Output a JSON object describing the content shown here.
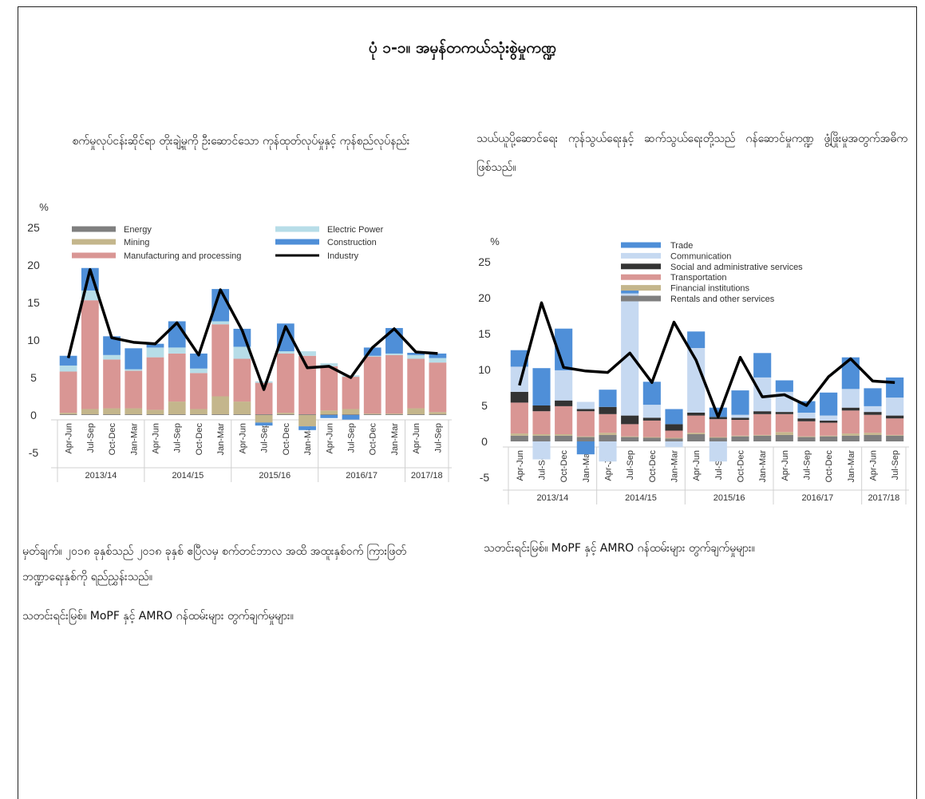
{
  "title": "ပုံ ၁-၁။ အမှန်တကယ်သုံးစွဲမှုကဏ္ဍ",
  "left": {
    "caption": "စက်မှုလုပ်ငန်းဆိုင်ရာ တိုးချဲ့မှုကို ဦးဆောင်သော ကုန်ထုတ်လုပ်မှုနှင့် ကုန်စည်လုပ်နည်း",
    "note": "မှတ်ချက်။ ၂၀၁၈ ခုနှစ်သည် ၂၀၁၈ ခုနှစ် ဧပြီလမှ စက်တင်ဘာလ အထိ အထူးနှစ်ဝက် ကြားဖြတ်ဘဏ္ဍာရေးနှစ်ကို ရည်ညွှန်းသည်။",
    "source": "သတင်းရင်းမြစ်။ MoPF နှင့် AMRO ဂန်ထမ်းများ တွက်ချက်မှုများ။",
    "chart": {
      "type": "bar",
      "stacked": true,
      "unit": "%",
      "years": [
        "2013/14",
        "2014/15",
        "2015/16",
        "2016/17",
        "2017/18"
      ],
      "categories": [
        [
          "Apr-Jun",
          "Jul-Sep",
          "Oct-Dec",
          "Jan-Mar"
        ],
        [
          "Apr-Jun",
          "Jul-Sep",
          "Oct-Dec",
          "Jan-Mar"
        ],
        [
          "Apr-Jun",
          "Jul-Sep",
          "Oct-Dec",
          "Jan-Mar"
        ],
        [
          "Apr-Jun",
          "Jul-Sep",
          "Oct-Dec",
          "Jan-Mar"
        ],
        [
          "Apr-Jun",
          "Jul-Sep"
        ]
      ],
      "ylim": [
        -5,
        25
      ],
      "yticks": [
        -5,
        0,
        5,
        10,
        15,
        20,
        25
      ],
      "series": [
        {
          "name": "Energy",
          "color": "#7f7f7f",
          "values": [
            0.1,
            0.1,
            0.1,
            0.1,
            0.1,
            0.1,
            0.1,
            0.1,
            0.1,
            0.1,
            0.1,
            0.1,
            0.1,
            0.1,
            0.1,
            0.1,
            0.1,
            0.1
          ]
        },
        {
          "name": "Mining",
          "color": "#c4b68c",
          "values": [
            0.2,
            0.7,
            0.8,
            0.8,
            0.6,
            1.7,
            0.7,
            2.4,
            1.7,
            -1.0,
            0.2,
            -1.5,
            0.5,
            0.7,
            0.1,
            0.1,
            0.8,
            0.3
          ]
        },
        {
          "name": "Manufacturing and processing",
          "color": "#d99694",
          "values": [
            5.5,
            14.5,
            6.5,
            5.0,
            7.0,
            6.4,
            4.8,
            9.6,
            5.7,
            4.2,
            7.9,
            7.8,
            5.9,
            4.3,
            7.6,
            7.8,
            6.6,
            6.6
          ]
        },
        {
          "name": "Electric Power",
          "color": "#b7dde8",
          "values": [
            0.8,
            1.3,
            0.6,
            0.2,
            1.3,
            0.8,
            0.6,
            0.4,
            1.6,
            0.2,
            0.3,
            0.6,
            0.4,
            0.2,
            0.1,
            0.2,
            0.5,
            0.6
          ]
        },
        {
          "name": "Construction",
          "color": "#4f8fd8",
          "values": [
            1.3,
            3.0,
            2.5,
            2.8,
            0.5,
            3.5,
            2.0,
            4.3,
            2.4,
            -0.4,
            3.7,
            -0.5,
            -0.4,
            -0.6,
            1.1,
            3.4,
            0.3,
            0.6
          ]
        },
        {
          "name": "Industry",
          "type": "line",
          "color": "#000000",
          "values": [
            7.6,
            19.4,
            10.3,
            9.7,
            9.5,
            12.3,
            8.0,
            16.7,
            11.3,
            3.4,
            11.8,
            6.3,
            6.5,
            5.0,
            9.0,
            11.5,
            8.4,
            8.2
          ]
        }
      ]
    }
  },
  "right": {
    "caption": "သယ်ယူပို့ဆောင်ရေး ကုန်သွယ်ရေးနှင့် ဆက်သွယ်ရေးတို့သည် ဂန်ဆောင်မှုကဏ္ဍ ဖွံ့ဖြိုးမှုအတွက်အဓိကဖြစ်သည်။",
    "source": "သတင်းရင်းမြစ်။ MoPF နှင့် AMRO ဂန်ထမ်းများ တွက်ချက်မှုများ။",
    "chart": {
      "type": "bar",
      "stacked": true,
      "unit": "%",
      "years": [
        "2013/14",
        "2014/15",
        "2015/16",
        "2016/17",
        "2017/18"
      ],
      "categories": [
        [
          "Apr-Jun",
          "Jul-Sep",
          "Oct-Dec",
          "Jan-Mar"
        ],
        [
          "Apr-Jun",
          "Jul-Sep",
          "Oct-Dec",
          "Jan-Mar"
        ],
        [
          "Apr-Jun",
          "Jul-Sep",
          "Oct-Dec",
          "Jan-Mar"
        ],
        [
          "Apr-Jun",
          "Jul-Sep",
          "Oct-Dec",
          "Jan-Mar"
        ],
        [
          "Apr-Jun",
          "Jul-Sep"
        ]
      ],
      "ylim": [
        -5,
        25
      ],
      "yticks": [
        -5,
        0,
        5,
        10,
        15,
        20,
        25
      ],
      "series": [
        {
          "name": "Rentals and other services",
          "color": "#7f7f7f",
          "values": [
            0.8,
            0.8,
            0.8,
            0.6,
            0.9,
            0.6,
            0.5,
            0.4,
            1.0,
            0.5,
            0.7,
            0.8,
            0.9,
            0.6,
            0.7,
            0.8,
            0.9,
            0.8
          ]
        },
        {
          "name": "Financial institutions",
          "color": "#c4b68c",
          "values": [
            0.3,
            0.2,
            0.2,
            0.1,
            0.3,
            0.1,
            0.1,
            0.1,
            0.2,
            0.1,
            0.1,
            0.1,
            0.4,
            0.1,
            0.1,
            0.3,
            0.3,
            0.1
          ]
        },
        {
          "name": "Transportation",
          "color": "#d99694",
          "values": [
            4.3,
            3.2,
            3.9,
            3.5,
            2.6,
            1.7,
            2.3,
            1.0,
            2.4,
            2.5,
            2.2,
            2.9,
            2.5,
            2.1,
            1.8,
            3.2,
            2.5,
            2.3
          ]
        },
        {
          "name": "Social and administrative services",
          "color": "#333333",
          "values": [
            1.5,
            0.8,
            0.8,
            0.3,
            1.0,
            1.2,
            0.4,
            0.9,
            0.4,
            0.3,
            0.3,
            0.4,
            0.3,
            0.4,
            0.3,
            0.4,
            0.4,
            0.4
          ]
        },
        {
          "name": "Communication",
          "color": "#c6d9f1",
          "values": [
            3.5,
            -2.5,
            4.2,
            1.0,
            -2.8,
            17.0,
            1.8,
            -0.8,
            9.0,
            -2.8,
            0.4,
            4.7,
            2.8,
            0.8,
            0.7,
            2.6,
            0.8,
            2.5
          ]
        },
        {
          "name": "Trade",
          "color": "#4f8fd8",
          "values": [
            2.3,
            5.2,
            5.8,
            -1.8,
            2.4,
            0.4,
            3.2,
            2.1,
            2.3,
            1.3,
            3.4,
            3.4,
            1.6,
            1.6,
            3.2,
            4.4,
            2.5,
            2.8
          ]
        },
        {
          "type": "line",
          "color": "#000000",
          "values": [
            7.8,
            19.3,
            10.3,
            9.8,
            9.6,
            12.3,
            8.2,
            16.6,
            11.3,
            3.4,
            11.7,
            6.2,
            6.5,
            5.0,
            9.0,
            11.5,
            8.4,
            8.2
          ]
        }
      ]
    }
  }
}
